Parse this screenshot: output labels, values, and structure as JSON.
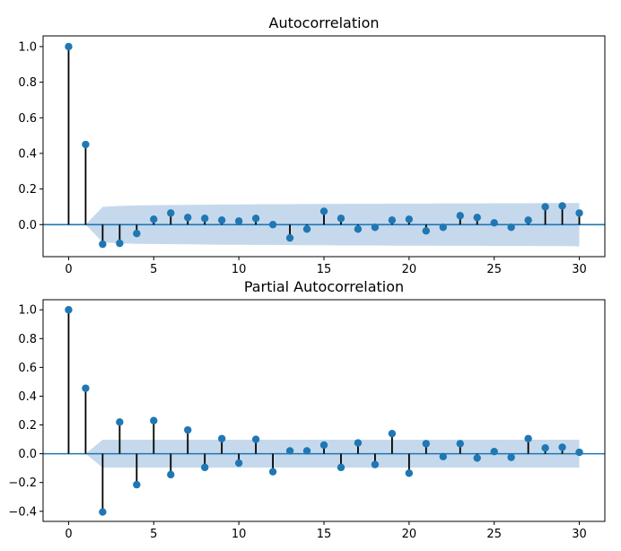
{
  "chart_data": [
    {
      "type": "stem",
      "title": "Autocorrelation",
      "xlabel": "",
      "ylabel": "",
      "xlim": [
        -1.5,
        31.5
      ],
      "ylim": [
        -0.18,
        1.06
      ],
      "xticks": [
        0,
        5,
        10,
        15,
        20,
        25,
        30
      ],
      "yticks": [
        0.0,
        0.2,
        0.4,
        0.6,
        0.8,
        1.0
      ],
      "ytick_labels": [
        "0.0",
        "0.2",
        "0.4",
        "0.6",
        "0.8",
        "1.0"
      ],
      "lags": [
        0,
        1,
        2,
        3,
        4,
        5,
        6,
        7,
        8,
        9,
        10,
        11,
        12,
        13,
        14,
        15,
        16,
        17,
        18,
        19,
        20,
        21,
        22,
        23,
        24,
        25,
        26,
        27,
        28,
        29,
        30
      ],
      "values": [
        1.0,
        0.45,
        -0.11,
        -0.105,
        -0.05,
        0.03,
        0.065,
        0.04,
        0.035,
        0.025,
        0.02,
        0.035,
        0.0,
        -0.075,
        -0.025,
        0.075,
        0.035,
        -0.025,
        -0.015,
        0.025,
        0.03,
        -0.035,
        -0.015,
        0.05,
        0.04,
        0.01,
        -0.015,
        0.025,
        0.1,
        0.105,
        0.065
      ],
      "confidence_band": [
        0,
        0,
        0.1,
        0.105,
        0.108,
        0.109,
        0.11,
        0.111,
        0.112,
        0.113,
        0.113,
        0.114,
        0.114,
        0.115,
        0.116,
        0.116,
        0.117,
        0.117,
        0.117,
        0.118,
        0.118,
        0.118,
        0.119,
        0.119,
        0.119,
        0.12,
        0.12,
        0.12,
        0.121,
        0.121,
        0.122
      ],
      "colors": {
        "marker": "#1f77b4",
        "stem": "#000000",
        "zero_line": "#1f77b4",
        "band": "#c6d9ec"
      }
    },
    {
      "type": "stem",
      "title": "Partial Autocorrelation",
      "xlabel": "",
      "ylabel": "",
      "xlim": [
        -1.5,
        31.5
      ],
      "ylim": [
        -0.47,
        1.07
      ],
      "xticks": [
        0,
        5,
        10,
        15,
        20,
        25,
        30
      ],
      "yticks": [
        -0.4,
        -0.2,
        0.0,
        0.2,
        0.4,
        0.6,
        0.8,
        1.0
      ],
      "ytick_labels": [
        "−0.4",
        "−0.2",
        "0.0",
        "0.2",
        "0.4",
        "0.6",
        "0.8",
        "1.0"
      ],
      "lags": [
        0,
        1,
        2,
        3,
        4,
        5,
        6,
        7,
        8,
        9,
        10,
        11,
        12,
        13,
        14,
        15,
        16,
        17,
        18,
        19,
        20,
        21,
        22,
        23,
        24,
        25,
        26,
        27,
        28,
        29,
        30
      ],
      "values": [
        1.0,
        0.455,
        -0.405,
        0.22,
        -0.215,
        0.23,
        -0.145,
        0.165,
        -0.095,
        0.105,
        -0.065,
        0.1,
        -0.125,
        0.02,
        0.02,
        0.06,
        -0.095,
        0.075,
        -0.075,
        0.14,
        -0.135,
        0.07,
        -0.02,
        0.07,
        -0.03,
        0.015,
        -0.025,
        0.105,
        0.04,
        0.045,
        0.01
      ],
      "confidence_band": [
        0,
        0,
        0.097,
        0.097,
        0.097,
        0.097,
        0.097,
        0.097,
        0.097,
        0.097,
        0.097,
        0.097,
        0.097,
        0.097,
        0.097,
        0.097,
        0.097,
        0.097,
        0.097,
        0.097,
        0.097,
        0.097,
        0.097,
        0.097,
        0.097,
        0.097,
        0.097,
        0.097,
        0.097,
        0.097,
        0.097
      ],
      "colors": {
        "marker": "#1f77b4",
        "stem": "#000000",
        "zero_line": "#1f77b4",
        "band": "#c6d9ec"
      }
    }
  ]
}
